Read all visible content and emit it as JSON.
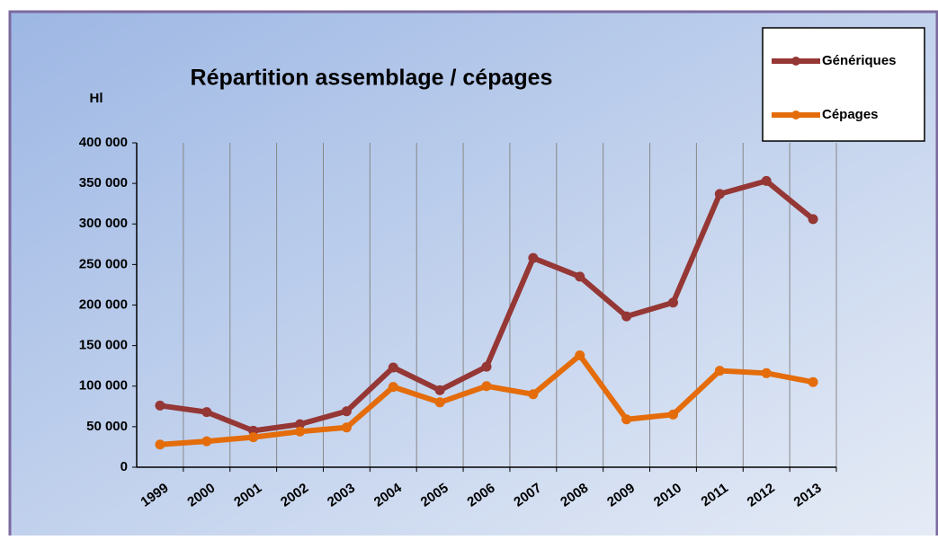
{
  "chart_data": {
    "type": "line",
    "title": "Répartition assemblage / cépages",
    "y_label": "Hl",
    "categories": [
      "1999",
      "2000",
      "2001",
      "2002",
      "2003",
      "2004",
      "2005",
      "2006",
      "2007",
      "2008",
      "2009",
      "2010",
      "2011",
      "2012",
      "2013"
    ],
    "series": [
      {
        "name": "Génériques",
        "color": "#953735",
        "values": [
          76000,
          68000,
          45000,
          53000,
          69000,
          123000,
          95000,
          124000,
          258000,
          235000,
          186000,
          203000,
          337000,
          353000,
          306000
        ]
      },
      {
        "name": "Cépages",
        "color": "#e46c0a",
        "values": [
          28000,
          32000,
          37000,
          44000,
          49000,
          99000,
          80000,
          100000,
          90000,
          138000,
          59000,
          65000,
          119000,
          116000,
          105000
        ]
      }
    ],
    "ylim": [
      0,
      400000
    ],
    "yticks": [
      0,
      {
        "value": 50000,
        "label": "50 000"
      },
      {
        "value": 100000,
        "label": "100 000"
      },
      {
        "value": 150000,
        "label": "150 000"
      },
      {
        "value": 200000,
        "label": "200 000"
      },
      {
        "value": 250000,
        "label": "250 000"
      },
      {
        "value": 300000,
        "label": "300 000"
      },
      {
        "value": 350000,
        "label": "350 000"
      },
      {
        "value": 400000,
        "label": "400 000"
      }
    ],
    "grid": true,
    "legend": "top-right"
  }
}
